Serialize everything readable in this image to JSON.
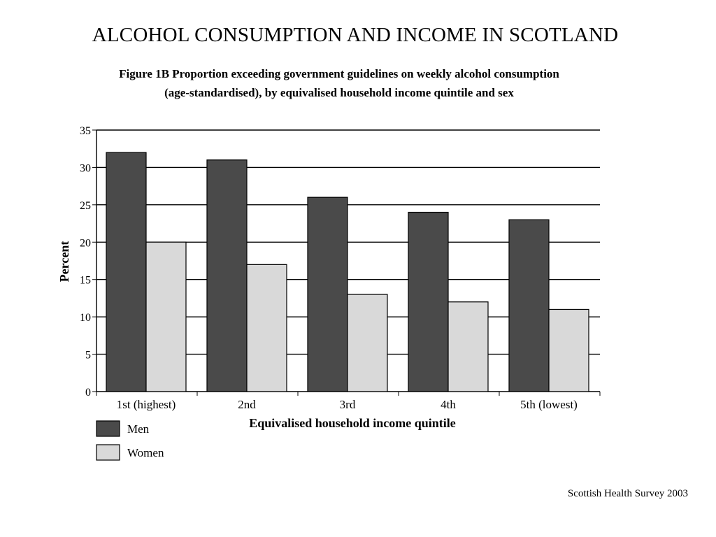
{
  "slide": {
    "title": "ALCOHOL CONSUMPTION AND INCOME IN SCOTLAND",
    "source": "Scottish Health Survey 2003"
  },
  "chart_data": {
    "type": "bar",
    "title": "Figure 1B Proportion exceeding government guidelines on weekly alcohol consumption",
    "subtitle": "(age-standardised), by equivalised household income quintile and sex",
    "xlabel": "Equivalised household income quintile",
    "ylabel": "Percent",
    "categories": [
      "1st (highest)",
      "2nd",
      "3rd",
      "4th",
      "5th (lowest)"
    ],
    "series": [
      {
        "name": "Men",
        "values": [
          32,
          31,
          26,
          24,
          23
        ],
        "color": "#4a4a4a"
      },
      {
        "name": "Women",
        "values": [
          20,
          17,
          13,
          12,
          11
        ],
        "color": "#d9d9d9"
      }
    ],
    "ylim": [
      0,
      35
    ],
    "yticks": [
      0,
      5,
      10,
      15,
      20,
      25,
      30,
      35
    ],
    "grid": true,
    "legend": "bottom-left"
  }
}
